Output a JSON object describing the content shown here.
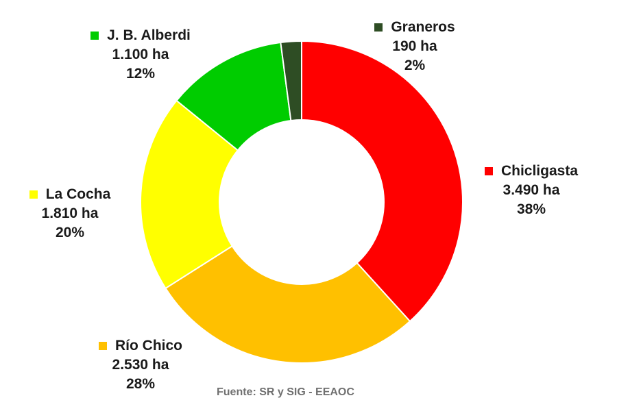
{
  "chart_data": {
    "type": "pie",
    "style": "donut",
    "title": "",
    "slices": [
      {
        "label": "Chicligasta",
        "area": "3.490 ha",
        "value": 3490,
        "percent": "38%",
        "color": "#ff0000"
      },
      {
        "label": "Río Chico",
        "area": "2.530 ha",
        "value": 2530,
        "percent": "28%",
        "color": "#ffc000"
      },
      {
        "label": "La Cocha",
        "area": "1.810 ha",
        "value": 1810,
        "percent": "20%",
        "color": "#ffff00"
      },
      {
        "label": "J. B. Alberdi",
        "area": "1.100 ha",
        "value": 1100,
        "percent": "12%",
        "color": "#00cc00"
      },
      {
        "label": "Graneros",
        "area": "190 ha",
        "value": 190,
        "percent": "2%",
        "color": "#2e4d24"
      }
    ],
    "source": "Fuente: SR y SIG - EEAOC"
  }
}
